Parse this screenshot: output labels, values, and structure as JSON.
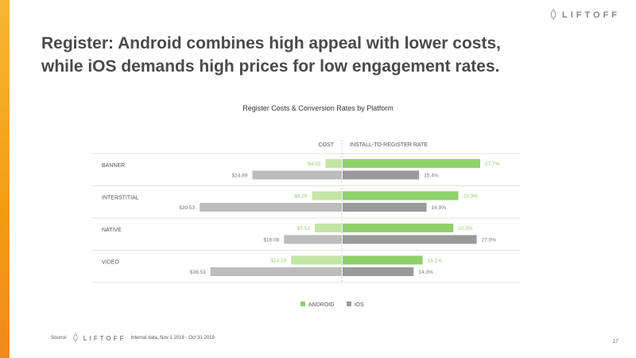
{
  "brand": {
    "name": "LIFTOFF"
  },
  "title_lines": [
    "Register: Android combines high appeal with lower costs,",
    "while iOS demands high prices for low engagement rates."
  ],
  "chart_data": {
    "type": "bar",
    "title": "Register Costs & Conversion Rates by Platform",
    "left_header": "COST",
    "right_header": "INSTALL-TO-REGISTER RATE",
    "categories": [
      "BANNER",
      "INTERSTITIAL",
      "NATIVE",
      "VIDEO"
    ],
    "series": [
      {
        "name": "ANDROID",
        "color": "#8fd16a",
        "cost_color": "#c3e6a6",
        "cost": [
          4.55,
          8.29,
          7.52,
          14.1
        ],
        "cost_labels": [
          "$4.55",
          "$8.29",
          "$7.52",
          "$14.10"
        ],
        "rate": [
          27.7,
          23.3,
          22.3,
          16.1
        ],
        "rate_labels": [
          "27.7%",
          "23.3%",
          "22.3%",
          "16.1%"
        ]
      },
      {
        "name": "iOS",
        "color": "#9a9a9a",
        "cost_color": "#bdbdbd",
        "cost": [
          24.89,
          39.53,
          16.08,
          36.53
        ],
        "cost_labels": [
          "$24.89",
          "$39.53",
          "$16.08",
          "$36.53"
        ],
        "rate": [
          15.4,
          16.9,
          27.0,
          14.3
        ],
        "rate_labels": [
          "15.4%",
          "16.9%",
          "27.0%",
          "14.3%"
        ]
      }
    ],
    "cost_max": 42,
    "rate_max": 28.5,
    "legend_position": "bottom-center"
  },
  "footer": {
    "source_label": "Source:",
    "brand": "LIFTOFF",
    "note": "Internal data, Nov 1 2018 - Oct 31 2019"
  },
  "page_number": "17"
}
